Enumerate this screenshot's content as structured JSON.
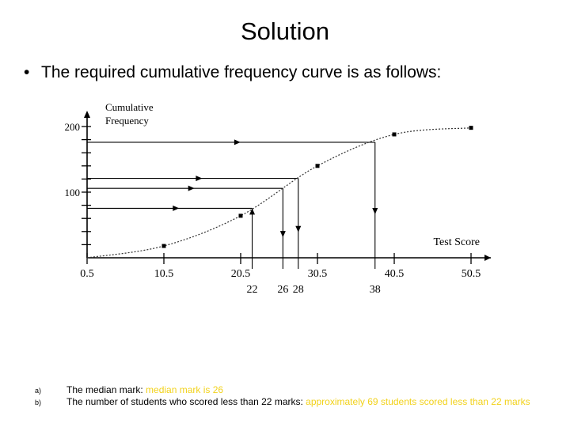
{
  "title": "Solution",
  "bullet": "The required cumulative frequency curve is as follows:",
  "chart_data": {
    "type": "line",
    "ylabel_line1": "Cumulative",
    "ylabel_line2": "Frequency",
    "xlabel": "Test Score",
    "x_ticks": [
      "0.5",
      "10.5",
      "20.5",
      "30.5",
      "40.5",
      "50.5"
    ],
    "y_ticks": [
      "100",
      "200"
    ],
    "read_values": [
      "22",
      "26",
      "28",
      "38"
    ],
    "series": [
      {
        "x": [
          0.5,
          10.5,
          20.5,
          30.5,
          40.5,
          50.5
        ],
        "y": [
          0,
          18,
          64,
          140,
          188,
          198
        ]
      }
    ],
    "xlim": [
      0.5,
      50.5
    ],
    "ylim": [
      0,
      200
    ]
  },
  "answers": [
    {
      "letter": "a)",
      "question": "The median mark: ",
      "answer": "median mark is 26"
    },
    {
      "letter": "b)",
      "question": "The number of students who scored less than 22 marks: ",
      "answer": "approximately 69 students scored less than 22 marks"
    }
  ]
}
